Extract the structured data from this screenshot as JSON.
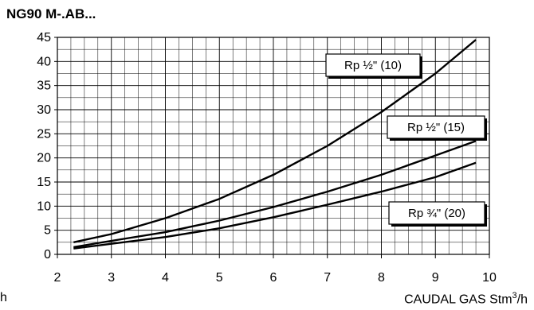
{
  "chart_data": {
    "type": "line",
    "title": "NG90 M-.AB...",
    "xlabel": "CAUDAL GAS Stm",
    "xlabel_sup": "3",
    "xlabel_suffix": "/h",
    "stray_label": "h",
    "xlim": [
      2,
      10
    ],
    "ylim": [
      0,
      45
    ],
    "x_ticks": [
      2,
      3,
      4,
      5,
      6,
      7,
      8,
      9,
      10
    ],
    "y_ticks": [
      0,
      5,
      10,
      15,
      20,
      25,
      30,
      35,
      40,
      45
    ],
    "grid": true,
    "series": [
      {
        "name": "Rp ½\" (10)",
        "points": [
          [
            2.3,
            2.5
          ],
          [
            3,
            4.2
          ],
          [
            4,
            7.5
          ],
          [
            5,
            11.5
          ],
          [
            6,
            16.5
          ],
          [
            7,
            22.5
          ],
          [
            8,
            29.5
          ],
          [
            9,
            37.5
          ],
          [
            9.75,
            44.5
          ]
        ]
      },
      {
        "name": "Rp ½\" (15)",
        "points": [
          [
            2.3,
            1.5
          ],
          [
            3,
            2.8
          ],
          [
            4,
            4.6
          ],
          [
            5,
            7.0
          ],
          [
            6,
            9.8
          ],
          [
            7,
            13.0
          ],
          [
            8,
            16.5
          ],
          [
            9,
            20.5
          ],
          [
            9.75,
            23.5
          ]
        ]
      },
      {
        "name": "Rp ¾\" (20)",
        "points": [
          [
            2.3,
            1.2
          ],
          [
            3,
            2.2
          ],
          [
            4,
            3.6
          ],
          [
            5,
            5.4
          ],
          [
            6,
            7.7
          ],
          [
            7,
            10.3
          ],
          [
            8,
            13.0
          ],
          [
            9,
            16.0
          ],
          [
            9.75,
            19.0
          ]
        ]
      }
    ],
    "labels": [
      {
        "text": "Rp ½\" (10)",
        "series": 0
      },
      {
        "text": "Rp ½\" (15)",
        "series": 1
      },
      {
        "text": "Rp ¾\" (20)",
        "series": 2
      }
    ]
  }
}
